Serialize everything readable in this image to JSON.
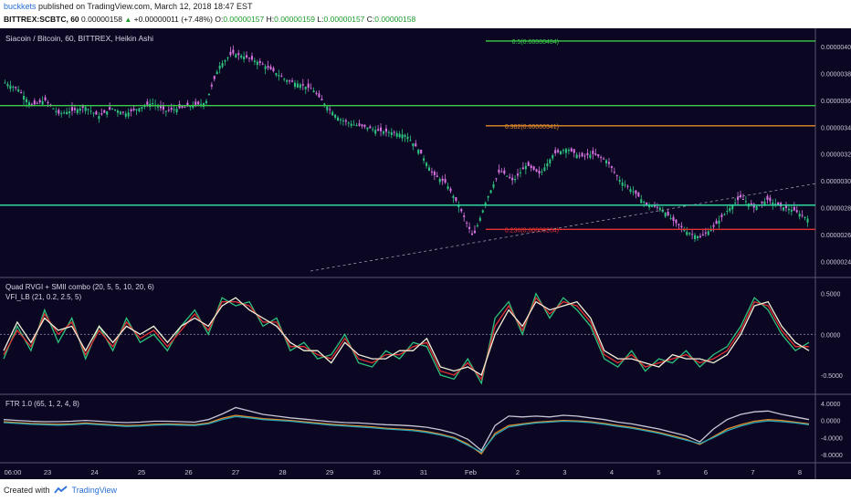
{
  "header": {
    "author": "buckkets",
    "published": "published on TradingView.com, March 12, 2018 18:47 EST",
    "symbol": "BITTREX:SCBTC, 60",
    "price": "0.00000158",
    "change": "+0.00000011 (+7.48%)",
    "o_label": "O:",
    "o_value": "0.00000157",
    "h_label": "H:",
    "h_value": "0.00000159",
    "l_label": "L:",
    "l_value": "0.00000157",
    "c_label": "C:",
    "c_value": "0.00000158"
  },
  "footer": {
    "created": "Created with",
    "brand": "TradingView"
  },
  "colors": {
    "background": "#0b0723",
    "bull": "#2ec27e",
    "bear": "#d872e0",
    "green_line": "#3ccb4a",
    "teal_line": "#2fd6a0",
    "orange_line": "#e08a2a",
    "red_line": "#e23232"
  },
  "chart_data": [
    {
      "type": "candlestick",
      "title": "Siacoin / Bitcoin, 60, BITTREX, Heikin Ashi",
      "x_ticks": [
        "06:00",
        "23",
        "24",
        "25",
        "26",
        "27",
        "28",
        "29",
        "30",
        "31",
        "Feb",
        "2",
        "3",
        "4",
        "5",
        "6",
        "7",
        "8"
      ],
      "y_ticks": [
        "0.00000400",
        "0.00000380",
        "0.00000360",
        "0.00000340",
        "0.00000320",
        "0.00000300",
        "0.00000280",
        "0.00000260",
        "0.00000240"
      ],
      "ylim": [
        2.33e-06,
        4.08e-06
      ],
      "close_path": [
        [
          0,
          3.73e-06
        ],
        [
          1,
          3.68e-06
        ],
        [
          2,
          3.56e-06
        ],
        [
          3,
          3.6e-06
        ],
        [
          4,
          3.5e-06
        ],
        [
          5,
          3.52e-06
        ],
        [
          6,
          3.55e-06
        ],
        [
          7,
          3.48e-06
        ],
        [
          8,
          3.54e-06
        ],
        [
          9,
          3.5e-06
        ],
        [
          10,
          3.54e-06
        ],
        [
          11,
          3.58e-06
        ],
        [
          12,
          3.52e-06
        ],
        [
          13,
          3.54e-06
        ],
        [
          14,
          3.56e-06
        ],
        [
          15,
          3.58e-06
        ],
        [
          16,
          3.85e-06
        ],
        [
          17,
          3.95e-06
        ],
        [
          18,
          3.92e-06
        ],
        [
          19,
          3.88e-06
        ],
        [
          20,
          3.82e-06
        ],
        [
          21,
          3.75e-06
        ],
        [
          22,
          3.72e-06
        ],
        [
          23,
          3.68e-06
        ],
        [
          24,
          3.56e-06
        ],
        [
          25,
          3.46e-06
        ],
        [
          26,
          3.42e-06
        ],
        [
          27,
          3.4e-06
        ],
        [
          28,
          3.37e-06
        ],
        [
          29,
          3.36e-06
        ],
        [
          30,
          3.34e-06
        ],
        [
          31,
          3.22e-06
        ],
        [
          32,
          3.05e-06
        ],
        [
          33,
          2.98e-06
        ],
        [
          34,
          2.8e-06
        ],
        [
          35,
          2.58e-06
        ],
        [
          36,
          2.86e-06
        ],
        [
          37,
          3.08e-06
        ],
        [
          38,
          3e-06
        ],
        [
          39,
          3.12e-06
        ],
        [
          40,
          3.05e-06
        ],
        [
          41,
          3.2e-06
        ],
        [
          42,
          3.24e-06
        ],
        [
          43,
          3.18e-06
        ],
        [
          44,
          3.2e-06
        ],
        [
          45,
          3.15e-06
        ],
        [
          46,
          3e-06
        ],
        [
          47,
          2.92e-06
        ],
        [
          48,
          2.82e-06
        ],
        [
          49,
          2.8e-06
        ],
        [
          50,
          2.7e-06
        ],
        [
          51,
          2.62e-06
        ],
        [
          52,
          2.58e-06
        ],
        [
          53,
          2.66e-06
        ],
        [
          54,
          2.78e-06
        ],
        [
          55,
          2.88e-06
        ],
        [
          56,
          2.8e-06
        ],
        [
          57,
          2.86e-06
        ],
        [
          58,
          2.81e-06
        ],
        [
          59,
          2.78e-06
        ],
        [
          60,
          2.72e-06
        ]
      ],
      "levels": [
        {
          "label": "0.5(0.00000404)",
          "value": 4.04e-06,
          "color": "#3ccb4a"
        },
        {
          "label": "",
          "value": 3.56e-06,
          "color": "#3ccb4a"
        },
        {
          "label": "0.382(0.00000341)",
          "value": 3.41e-06,
          "color": "#e08a2a"
        },
        {
          "label": "",
          "value": 2.82e-06,
          "color": "#2fd6a0"
        },
        {
          "label": "0.236(0.00000264)",
          "value": 2.64e-06,
          "color": "#e23232"
        }
      ]
    },
    {
      "type": "line",
      "title": "Quad RVGI + SMII combo (20, 5, 5, 10, 20, 6)",
      "subtitle": "VFI_LB (21, 0.2, 2.5, 5)",
      "y_ticks": [
        "0.5000",
        "0.0000",
        "-0.5000"
      ],
      "ylim": [
        -0.68,
        0.62
      ],
      "series": [
        {
          "color": "#2ec27e",
          "values": [
            -0.3,
            0.1,
            -0.2,
            0.3,
            -0.1,
            0.2,
            -0.3,
            0.1,
            -0.2,
            0.2,
            -0.1,
            0.0,
            -0.2,
            0.1,
            0.3,
            0.0,
            0.45,
            0.35,
            0.4,
            0.1,
            0.2,
            -0.2,
            -0.1,
            -0.3,
            -0.25,
            0.0,
            -0.35,
            -0.4,
            -0.2,
            -0.3,
            -0.1,
            -0.15,
            -0.5,
            -0.55,
            -0.3,
            -0.6,
            0.2,
            0.4,
            0.0,
            0.5,
            0.2,
            0.45,
            0.3,
            0.1,
            -0.3,
            -0.4,
            -0.2,
            -0.45,
            -0.3,
            -0.35,
            -0.2,
            -0.4,
            -0.25,
            -0.15,
            0.1,
            0.45,
            0.3,
            0.0,
            -0.2,
            -0.1
          ]
        },
        {
          "color": "#e23232",
          "values": [
            -0.25,
            0.05,
            -0.15,
            0.25,
            0.0,
            0.15,
            -0.25,
            0.05,
            -0.15,
            0.15,
            -0.05,
            0.05,
            -0.15,
            0.05,
            0.25,
            0.05,
            0.4,
            0.4,
            0.35,
            0.15,
            0.15,
            -0.15,
            -0.15,
            -0.25,
            -0.3,
            -0.05,
            -0.3,
            -0.35,
            -0.25,
            -0.25,
            -0.15,
            -0.1,
            -0.45,
            -0.5,
            -0.35,
            -0.55,
            0.1,
            0.35,
            0.05,
            0.45,
            0.25,
            0.4,
            0.35,
            0.15,
            -0.25,
            -0.35,
            -0.25,
            -0.4,
            -0.35,
            -0.3,
            -0.25,
            -0.35,
            -0.3,
            -0.2,
            0.05,
            0.4,
            0.35,
            0.05,
            -0.15,
            -0.15
          ]
        },
        {
          "color": "#f2f0d8",
          "values": [
            -0.2,
            0.15,
            -0.1,
            0.2,
            0.05,
            0.1,
            -0.2,
            0.1,
            -0.1,
            0.1,
            0.0,
            0.1,
            -0.1,
            0.1,
            0.2,
            0.1,
            0.35,
            0.45,
            0.3,
            0.2,
            0.1,
            -0.1,
            -0.2,
            -0.2,
            -0.35,
            -0.1,
            -0.25,
            -0.3,
            -0.3,
            -0.2,
            -0.2,
            -0.05,
            -0.4,
            -0.45,
            -0.4,
            -0.5,
            0.0,
            0.3,
            0.1,
            0.4,
            0.3,
            0.35,
            0.4,
            0.2,
            -0.2,
            -0.3,
            -0.3,
            -0.35,
            -0.4,
            -0.25,
            -0.3,
            -0.3,
            -0.35,
            -0.25,
            0.0,
            0.35,
            0.4,
            0.1,
            -0.1,
            -0.2
          ]
        }
      ]
    },
    {
      "type": "line",
      "title": "FTR 1.0 (65, 1, 2, 4, 8)",
      "y_ticks": [
        "4.0000",
        "0.0000",
        "-4.0000",
        "-8.0000"
      ],
      "ylim": [
        -8.6,
        4.6
      ],
      "series": [
        {
          "color": "#e08a2a",
          "values": [
            -0.3,
            -0.5,
            -0.7,
            -0.8,
            -0.9,
            -0.8,
            -0.6,
            -0.8,
            -1.0,
            -1.2,
            -1.1,
            -0.9,
            -0.8,
            -0.9,
            -1.0,
            -0.6,
            0.5,
            1.2,
            0.8,
            0.4,
            0.2,
            0.0,
            -0.3,
            -0.6,
            -0.9,
            -1.1,
            -1.3,
            -1.5,
            -1.8,
            -2.0,
            -2.2,
            -2.6,
            -3.2,
            -4.0,
            -5.5,
            -7.8,
            -3.0,
            -1.2,
            -0.8,
            -0.4,
            -0.2,
            0.0,
            -0.1,
            -0.3,
            -0.7,
            -1.2,
            -1.6,
            -2.2,
            -2.8,
            -3.6,
            -4.4,
            -5.6,
            -3.8,
            -2.0,
            -1.0,
            -0.2,
            0.2,
            0.0,
            -0.4,
            -0.8
          ]
        },
        {
          "color": "#2aa7b8",
          "values": [
            -0.5,
            -0.7,
            -0.9,
            -1.0,
            -1.1,
            -1.0,
            -0.8,
            -1.0,
            -1.2,
            -1.4,
            -1.3,
            -1.1,
            -1.0,
            -1.1,
            -1.2,
            -0.8,
            0.2,
            0.9,
            0.6,
            0.2,
            0.0,
            -0.2,
            -0.5,
            -0.8,
            -1.1,
            -1.3,
            -1.5,
            -1.7,
            -2.0,
            -2.2,
            -2.4,
            -2.8,
            -3.4,
            -4.2,
            -5.8,
            -7.4,
            -3.4,
            -1.5,
            -1.0,
            -0.6,
            -0.4,
            -0.2,
            -0.3,
            -0.5,
            -0.9,
            -1.4,
            -1.8,
            -2.4,
            -3.0,
            -3.8,
            -4.6,
            -5.4,
            -4.0,
            -2.4,
            -1.3,
            -0.5,
            -0.1,
            -0.3,
            -0.6,
            -1.0
          ]
        },
        {
          "color": "#c9c6d6",
          "values": [
            0.2,
            0.0,
            -0.2,
            -0.3,
            -0.3,
            -0.2,
            0.0,
            -0.2,
            -0.4,
            -0.5,
            -0.4,
            -0.2,
            -0.2,
            -0.3,
            -0.4,
            0.2,
            1.5,
            3.0,
            2.2,
            1.4,
            1.0,
            0.6,
            0.3,
            0.0,
            -0.3,
            -0.5,
            -0.6,
            -0.8,
            -1.0,
            -1.1,
            -1.3,
            -1.6,
            -2.2,
            -3.0,
            -4.4,
            -7.0,
            -1.2,
            1.0,
            0.8,
            1.0,
            0.8,
            1.2,
            1.0,
            0.6,
            0.2,
            -0.4,
            -0.8,
            -1.4,
            -2.0,
            -2.8,
            -3.6,
            -5.0,
            -2.0,
            0.2,
            1.4,
            2.0,
            2.2,
            1.4,
            0.8,
            0.2
          ]
        }
      ]
    }
  ]
}
